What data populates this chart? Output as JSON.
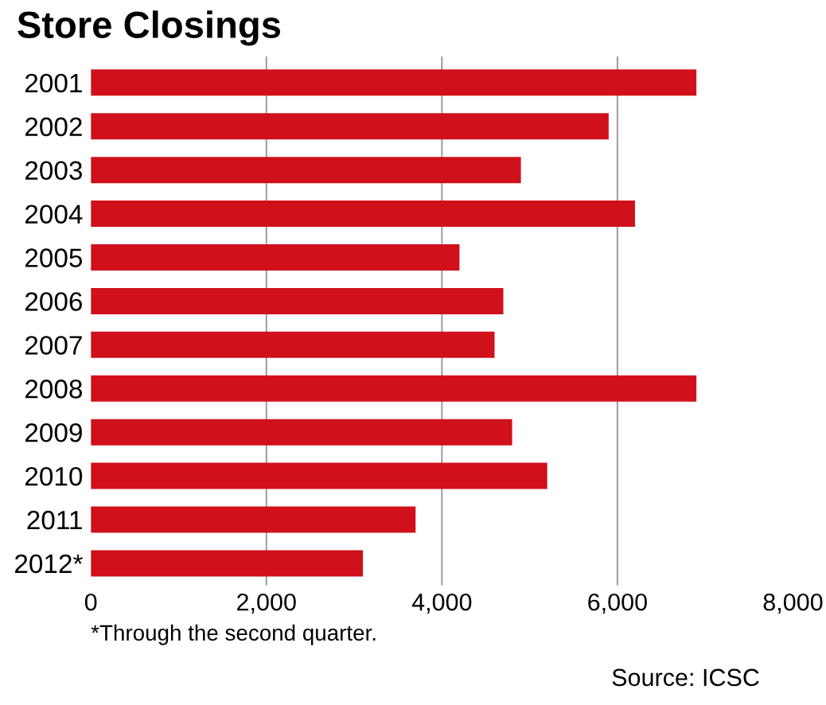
{
  "chart_data": {
    "type": "bar",
    "orientation": "horizontal",
    "title": "Store Closings",
    "categories": [
      "2001",
      "2002",
      "2003",
      "2004",
      "2005",
      "2006",
      "2007",
      "2008",
      "2009",
      "2010",
      "2011",
      "2012*"
    ],
    "values": [
      6900,
      5900,
      4900,
      6200,
      4200,
      4700,
      4600,
      6900,
      4800,
      5200,
      3700,
      3100
    ],
    "color": "#d0101a",
    "xlim": [
      0,
      8000
    ],
    "xticks": [
      0,
      {
        "value": 2000,
        "label": "2,000"
      },
      {
        "value": 4000,
        "label": "4,000"
      },
      {
        "value": 6000,
        "label": "6,000"
      },
      {
        "value": 8000,
        "label": "8,000"
      }
    ],
    "grid": "x",
    "annotations": [
      "*Through the second quarter.",
      "Source: ICSC"
    ]
  }
}
